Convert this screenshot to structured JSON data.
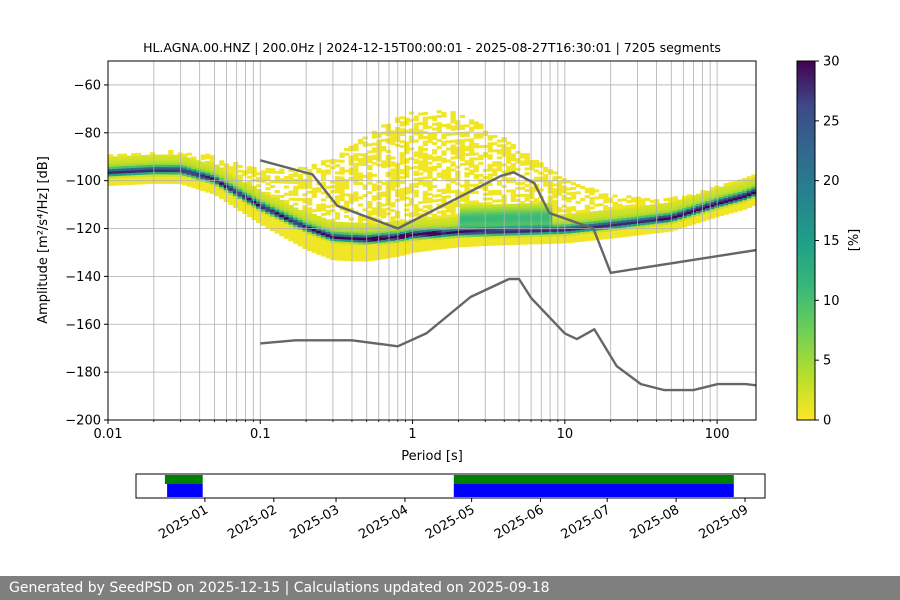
{
  "chart_data": {
    "type": "heatmap",
    "title": "HL.AGNA.00.HNZ | 200.0Hz | 2024-12-15T00:00:01 - 2025-08-27T16:30:01 | 7205 segments",
    "xlabel": "Period [s]",
    "ylabel": "Amplitude [m²/s⁴/Hz] [dB]",
    "xscale": "log",
    "xlim": [
      0.01,
      180
    ],
    "ylim": [
      -200,
      -50
    ],
    "x_ticks": [
      0.01,
      0.1,
      1,
      10,
      100
    ],
    "x_tick_labels": [
      "0.01",
      "0.1",
      "1",
      "10",
      "100"
    ],
    "y_ticks": [
      -200,
      -180,
      -160,
      -140,
      -120,
      -100,
      -80,
      -60
    ],
    "y_tick_labels": [
      "−200",
      "−180",
      "−160",
      "−140",
      "−120",
      "−100",
      "−80",
      "−60"
    ],
    "grid": true,
    "mode_curve": {
      "name": "PSD mode",
      "period": [
        0.01,
        0.02,
        0.03,
        0.05,
        0.1,
        0.2,
        0.3,
        0.5,
        0.8,
        1,
        2,
        5,
        10,
        20,
        50,
        100,
        150,
        180
      ],
      "db": [
        -97,
        -96,
        -96,
        -100,
        -111,
        -120,
        -124,
        -125,
        -124,
        -123,
        -122,
        -121.5,
        -121,
        -119,
        -116,
        -110,
        -107,
        -105
      ]
    },
    "noise_models": [
      {
        "name": "NHNM",
        "period": [
          0.1,
          0.22,
          0.32,
          0.8,
          3.8,
          4.6,
          6.3,
          7.9,
          15.4,
          20,
          180
        ],
        "db": [
          -91.5,
          -97.4,
          -110.5,
          -120,
          -98,
          -96.5,
          -101,
          -113.5,
          -120,
          -138.5,
          -129
        ]
      },
      {
        "name": "NLNM",
        "period": [
          0.1,
          0.17,
          0.4,
          0.8,
          1.24,
          2.4,
          4.3,
          5,
          6,
          10,
          12,
          15.6,
          21.9,
          31.6,
          45,
          70,
          101,
          154,
          180
        ],
        "db": [
          -168,
          -166.7,
          -166.7,
          -169.2,
          -163.7,
          -148.6,
          -141.1,
          -141.1,
          -149,
          -163.8,
          -166.2,
          -162.1,
          -177.5,
          -185,
          -187.5,
          -187.5,
          -185,
          -185,
          -185.5
        ]
      }
    ],
    "colorbar": {
      "label": "[%]",
      "min": 0,
      "max": 30,
      "ticks": [
        0,
        5,
        10,
        15,
        20,
        25,
        30
      ],
      "tick_labels": [
        "0",
        "5",
        "10",
        "15",
        "20",
        "25",
        "30"
      ],
      "colormap": "viridis_r"
    },
    "timeline": {
      "date_labels": [
        "2025-01",
        "2025-02",
        "2025-03",
        "2025-04",
        "2025-05",
        "2025-06",
        "2025-07",
        "2025-08",
        "2025-09"
      ],
      "date_start": "2024-12-01",
      "date_end": "2025-09-10",
      "coverage_segments": [
        {
          "start": "2024-12-14",
          "end": "2024-12-31",
          "color": "green"
        },
        {
          "start": "2024-12-15",
          "end": "2024-12-31",
          "color": "blue"
        },
        {
          "start": "2025-04-23",
          "end": "2025-08-27",
          "color": "green"
        },
        {
          "start": "2025-04-23",
          "end": "2025-08-27",
          "color": "blue"
        }
      ]
    }
  },
  "footer_text": "Generated by SeedPSD on 2025-12-15 | Calculations updated on 2025-09-18",
  "colors": {
    "grid": "#b0b0b0",
    "noise_model": "#666666",
    "mode": "#440154",
    "coverage_green": "#008000",
    "coverage_blue": "#0000ff",
    "footer_bg": "#7f7f7f"
  }
}
